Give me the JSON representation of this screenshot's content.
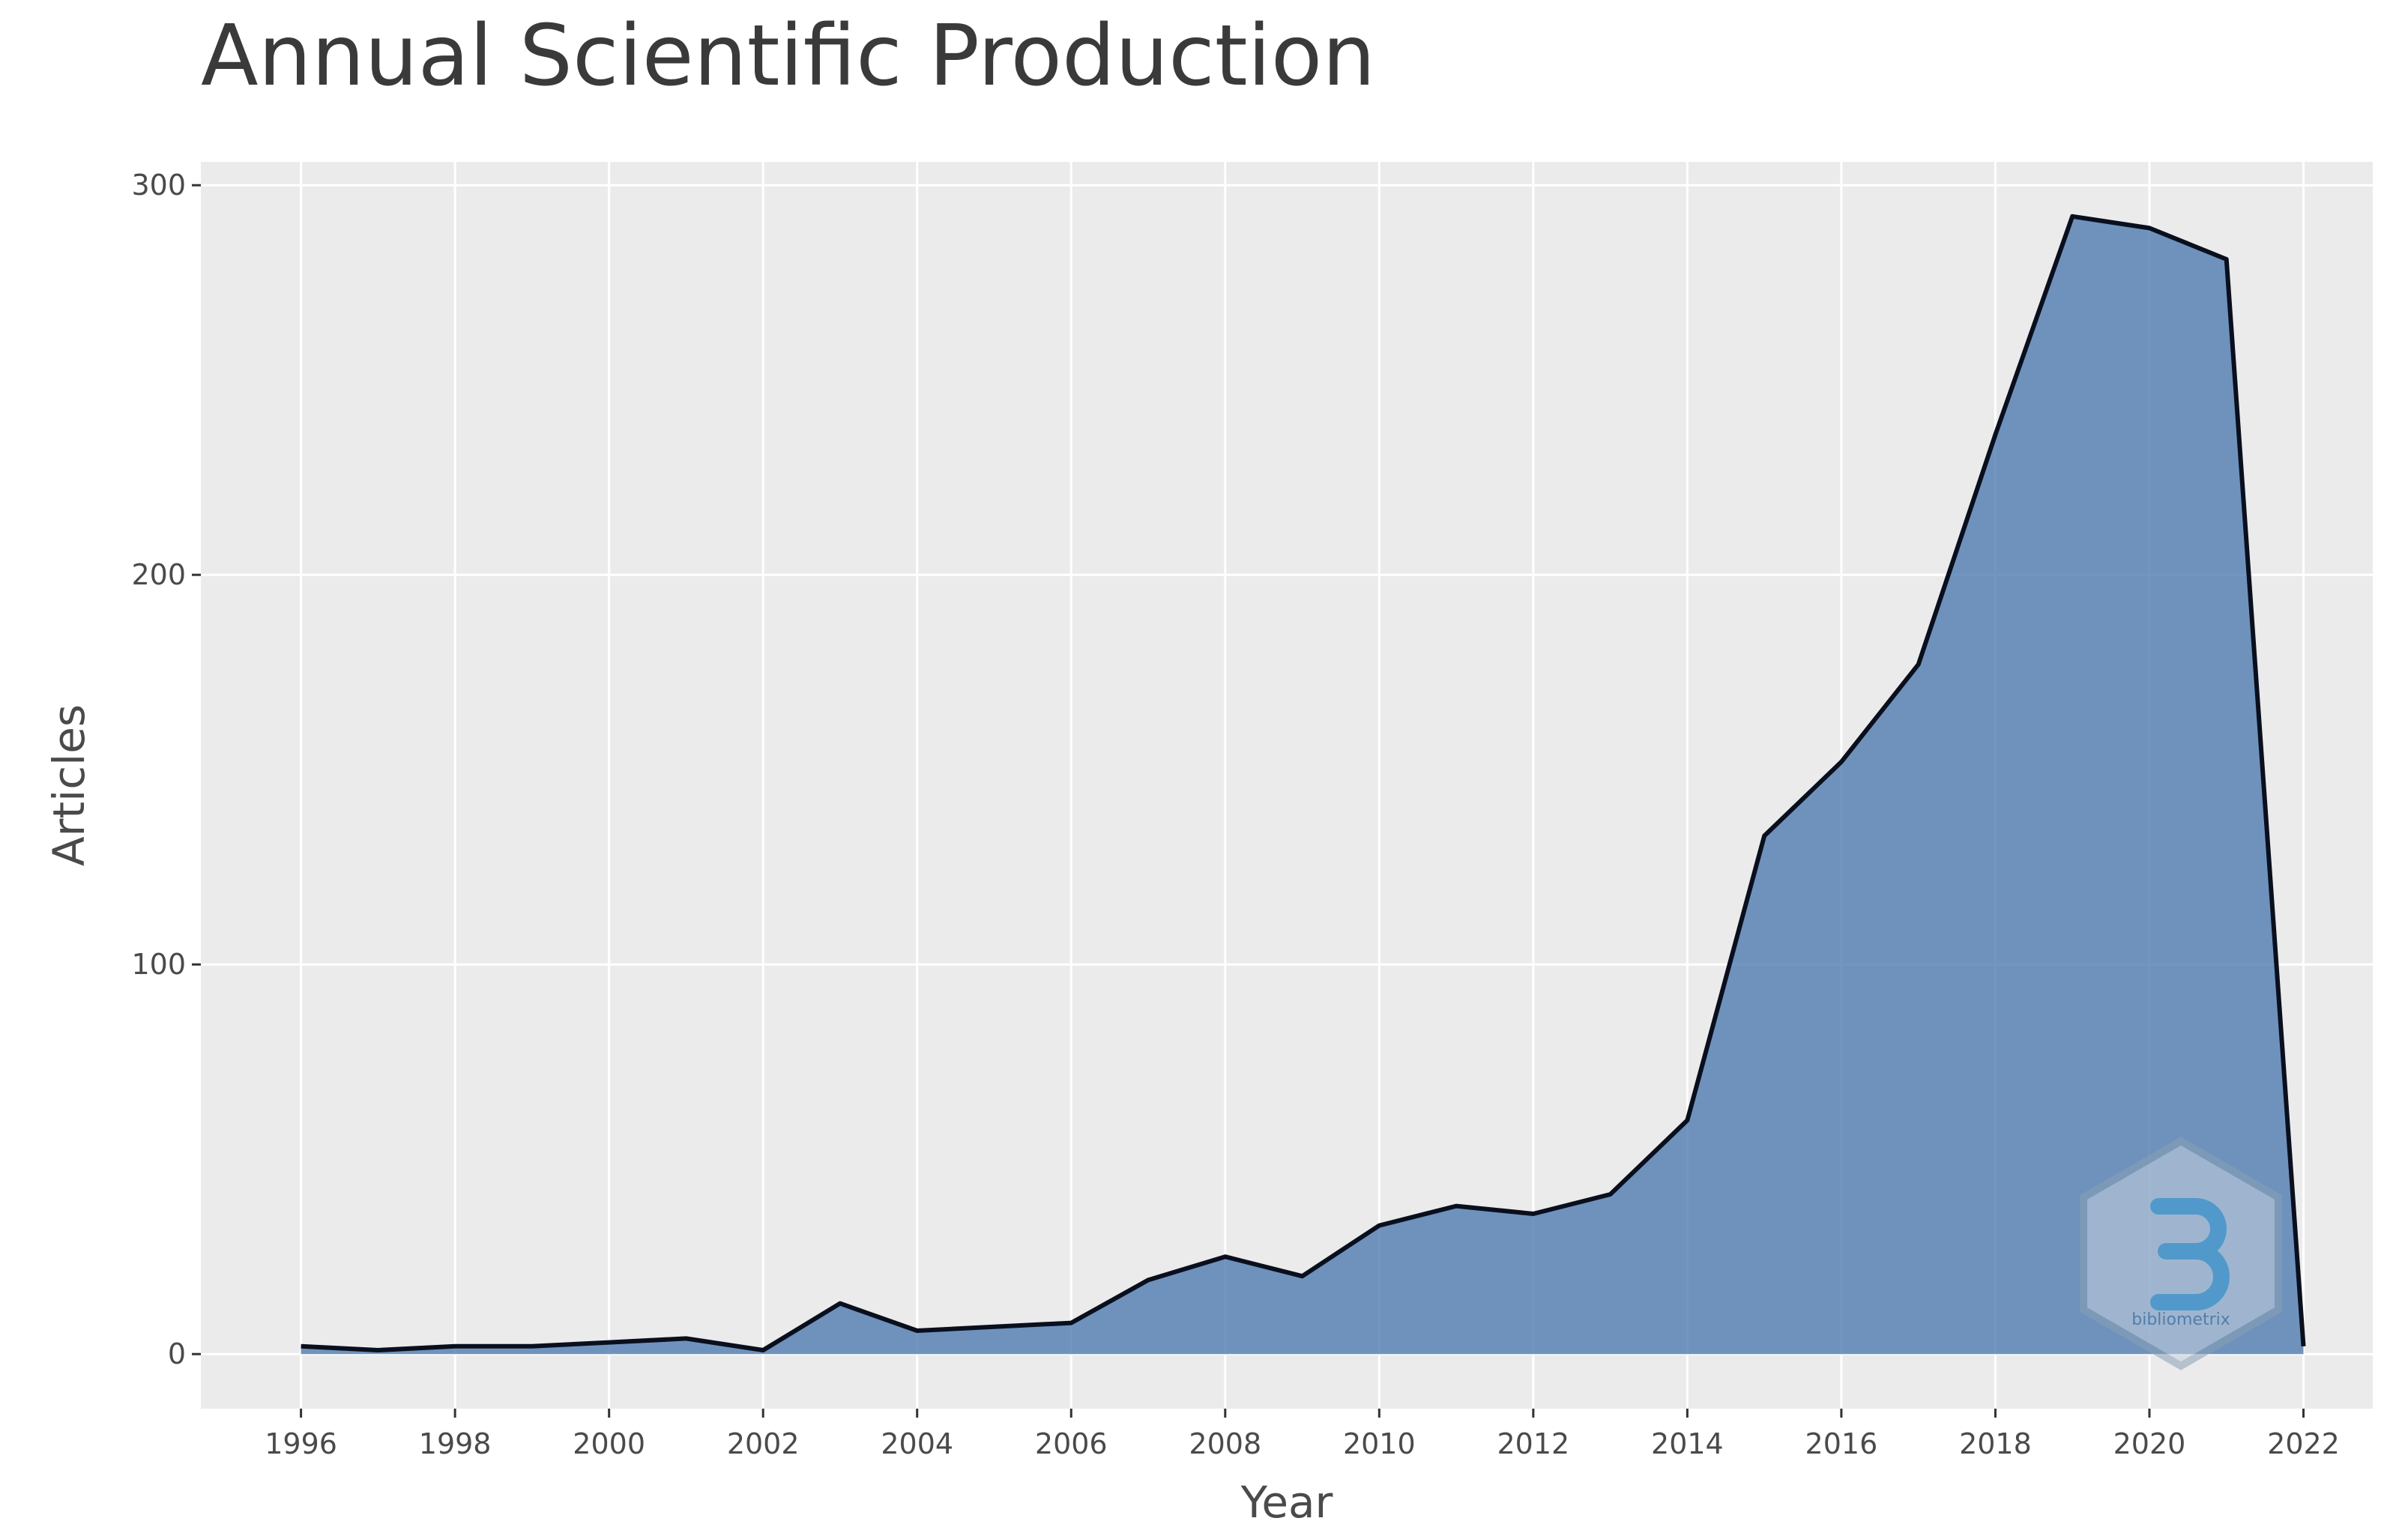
{
  "chart_data": {
    "type": "area",
    "title": "Annual Scientific Production",
    "xlabel": "Year",
    "ylabel": "Articles",
    "x": [
      1996,
      1997,
      1998,
      1999,
      2000,
      2001,
      2002,
      2003,
      2004,
      2005,
      2006,
      2007,
      2008,
      2009,
      2010,
      2011,
      2012,
      2013,
      2014,
      2015,
      2016,
      2017,
      2018,
      2019,
      2020,
      2021,
      2022
    ],
    "series": [
      {
        "values": [
          2,
          1,
          2,
          2,
          3,
          4,
          1,
          13,
          6,
          7,
          8,
          19,
          25,
          20,
          33,
          38,
          36,
          41,
          60,
          133,
          152,
          177,
          236,
          292,
          289,
          281,
          2
        ]
      }
    ],
    "xlim": [
      1994.7,
      2022.9
    ],
    "ylim": [
      -14,
      306
    ],
    "xticks": [
      1996,
      1998,
      2000,
      2002,
      2004,
      2006,
      2008,
      2010,
      2012,
      2014,
      2016,
      2018,
      2020,
      2022
    ],
    "yticks": [
      0,
      100,
      200,
      300
    ],
    "grid": true,
    "colors": {
      "fill": "#4a78ae",
      "line": "#0a0f1e",
      "panel": "#ebebeb",
      "grid": "#ffffff"
    },
    "watermark_text": "bibliometrix"
  }
}
